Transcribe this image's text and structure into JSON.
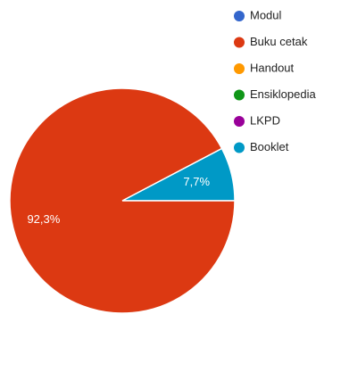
{
  "chart_data": {
    "type": "pie",
    "slices": [
      {
        "label": "Modul",
        "value": 0,
        "color": "#3366cc"
      },
      {
        "label": "Buku cetak",
        "value": 92.3,
        "color": "#dc3912"
      },
      {
        "label": "Handout",
        "value": 0,
        "color": "#ff9900"
      },
      {
        "label": "Ensiklopedia",
        "value": 0,
        "color": "#109618"
      },
      {
        "label": "LKPD",
        "value": 0,
        "color": "#990099"
      },
      {
        "label": "Booklet",
        "value": 7.7,
        "color": "#0099c6"
      }
    ],
    "data_labels": {
      "Buku cetak": "92,3%",
      "Booklet": "7,7%"
    },
    "legend": {
      "placement": "right",
      "items": [
        "Modul",
        "Buku cetak",
        "Handout",
        "Ensiklopedia",
        "LKPD",
        "Booklet"
      ]
    }
  }
}
